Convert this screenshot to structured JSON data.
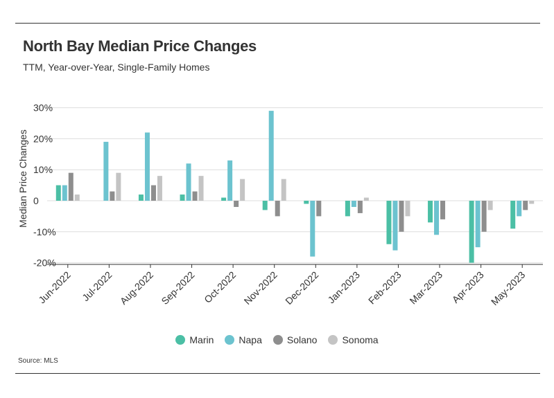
{
  "header": {
    "title": "North Bay Median Price Changes",
    "subtitle": "TTM, Year-over-Year, Single-Family Homes"
  },
  "footer": {
    "source": "Source: MLS"
  },
  "chart_data": {
    "type": "bar",
    "title": "North Bay Median Price Changes",
    "subtitle": "TTM, Year-over-Year, Single-Family Homes",
    "xlabel": "",
    "ylabel": "Median Price Changes",
    "ylim": [
      -20,
      30
    ],
    "yticks": [
      -20,
      -10,
      0,
      10,
      20,
      30
    ],
    "ytick_labels": [
      "-20%",
      "-10%",
      "0",
      "10%",
      "20%",
      "30%"
    ],
    "grid": true,
    "legend_position": "bottom",
    "categories": [
      "Jun-2022",
      "Jul-2022",
      "Aug-2022",
      "Sep-2022",
      "Oct-2022",
      "Nov-2022",
      "Dec-2022",
      "Jan-2023",
      "Feb-2023",
      "Mar-2023",
      "Apr-2023",
      "May-2023"
    ],
    "series": [
      {
        "name": "Marin",
        "color": "#4bbfa5",
        "values": [
          5,
          0,
          2,
          2,
          1,
          -3,
          -1,
          -5,
          -14,
          -7,
          -20,
          -9
        ]
      },
      {
        "name": "Napa",
        "color": "#6cc3cf",
        "values": [
          5,
          19,
          22,
          12,
          13,
          29,
          -18,
          -2,
          -16,
          -11,
          -15,
          -5
        ]
      },
      {
        "name": "Solano",
        "color": "#8e8e8e",
        "values": [
          9,
          3,
          5,
          3,
          -2,
          -5,
          -5,
          -4,
          -10,
          -6,
          -10,
          -3
        ]
      },
      {
        "name": "Sonoma",
        "color": "#c4c4c4",
        "values": [
          2,
          9,
          8,
          8,
          7,
          7,
          0,
          1,
          -5,
          0,
          -3,
          -1
        ]
      }
    ]
  }
}
